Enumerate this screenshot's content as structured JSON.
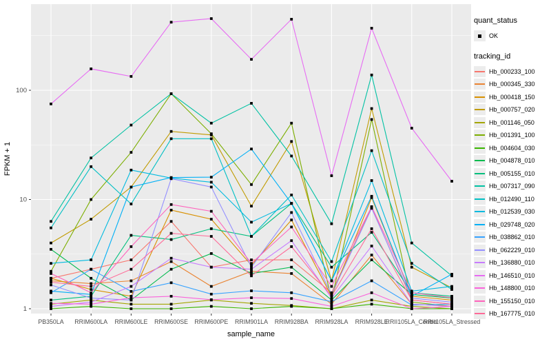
{
  "page": {
    "background": "#FFFFFF"
  },
  "panel": {
    "background": "#EBEBEB",
    "grid_color": "#FFFFFF",
    "tick_color": "#333333",
    "tick_label_color": "#4D4D4D"
  },
  "axes": {
    "x": {
      "label": "sample_name",
      "categories": [
        "PB350LA",
        "RRIM600LA",
        "RRIM600LE",
        "RRIM600SE",
        "RRIM600PE",
        "RRIM901LA",
        "RRIM928BA",
        "RRIM928LA",
        "RRIM928LE",
        "RRII105LA_Control",
        "RRII105LA_Stressed"
      ]
    },
    "y": {
      "label": "FPKM + 1",
      "scale": "log10",
      "tick_labels": [
        "1",
        "10",
        "100"
      ]
    }
  },
  "legend": {
    "quant_status": {
      "title": "quant_status",
      "items": [
        {
          "label": "OK",
          "marker": "black-point"
        }
      ]
    },
    "tracking_id": {
      "title": "tracking_id",
      "items": [
        {
          "label": "Hb_000233_100",
          "color": "#F8766D"
        },
        {
          "label": "Hb_000345_330",
          "color": "#EA8331"
        },
        {
          "label": "Hb_000418_150",
          "color": "#D89000"
        },
        {
          "label": "Hb_000757_020",
          "color": "#C09B00"
        },
        {
          "label": "Hb_001146_050",
          "color": "#A3A500"
        },
        {
          "label": "Hb_001391_100",
          "color": "#7CAE00"
        },
        {
          "label": "Hb_004604_030",
          "color": "#39B600"
        },
        {
          "label": "Hb_004878_010",
          "color": "#00BB4E"
        },
        {
          "label": "Hb_005155_010",
          "color": "#00BF7D"
        },
        {
          "label": "Hb_007317_090",
          "color": "#00C1A3"
        },
        {
          "label": "Hb_012490_110",
          "color": "#00BFC4"
        },
        {
          "label": "Hb_012539_030",
          "color": "#00BAE0"
        },
        {
          "label": "Hb_029748_020",
          "color": "#00B0F6"
        },
        {
          "label": "Hb_038862_010",
          "color": "#35A2FF"
        },
        {
          "label": "Hb_062229_010",
          "color": "#9590FF"
        },
        {
          "label": "Hb_136880_010",
          "color": "#C77CFF"
        },
        {
          "label": "Hb_146510_010",
          "color": "#E76BF3"
        },
        {
          "label": "Hb_148800_010",
          "color": "#FA62DB"
        },
        {
          "label": "Hb_155150_010",
          "color": "#FF62BC"
        },
        {
          "label": "Hb_167775_010",
          "color": "#FF6A98"
        }
      ]
    }
  },
  "chart_data": {
    "type": "line",
    "title": "",
    "xlabel": "sample_name",
    "ylabel": "FPKM + 1",
    "yscale": "log10",
    "ylim": [
      1,
      600
    ],
    "yticks": [
      1,
      10,
      100
    ],
    "minor_gridlines": [
      3.162,
      31.62,
      316.2
    ],
    "grid": true,
    "legend_position": "right",
    "point_color": "#000000",
    "categories": [
      "PB350LA",
      "RRIM600LA",
      "RRIM600LE",
      "RRIM600SE",
      "RRIM600PE",
      "RRIM901LA",
      "RRIM928BA",
      "RRIM928LA",
      "RRIM928LE",
      "RRII105LA_Control",
      "RRII105LA_Stressed"
    ],
    "series": [
      {
        "name": "Hb_000233_100",
        "color": "#F8766D",
        "values": [
          1.9,
          2.3,
          2.8,
          6.3,
          2.4,
          2.8,
          2.8,
          1.4,
          8.5,
          1.2,
          1.1
        ]
      },
      {
        "name": "Hb_000345_330",
        "color": "#EA8331",
        "values": [
          1.8,
          1.7,
          1.8,
          2.7,
          1.6,
          2.2,
          2.1,
          1.1,
          3.1,
          1.1,
          1.05
        ]
      },
      {
        "name": "Hb_000418_150",
        "color": "#D89000",
        "values": [
          1.9,
          1.5,
          1.3,
          8.0,
          6.6,
          2.5,
          6.5,
          1.3,
          10.4,
          1.3,
          1.2
        ]
      },
      {
        "name": "Hb_000757_020",
        "color": "#C09B00",
        "values": [
          4.0,
          6.6,
          13,
          42,
          39,
          8.7,
          34,
          1.8,
          68,
          2.4,
          1.55
        ]
      },
      {
        "name": "Hb_001146_050",
        "color": "#A3A500",
        "values": [
          1.1,
          1.2,
          1.1,
          1.1,
          1.2,
          1.12,
          1.07,
          1.0,
          1.2,
          1.05,
          1.0
        ]
      },
      {
        "name": "Hb_001391_100",
        "color": "#7CAE00",
        "values": [
          2.2,
          10,
          27,
          93,
          40,
          13.7,
          50,
          1.2,
          54,
          1.15,
          1.05
        ]
      },
      {
        "name": "Hb_004604_030",
        "color": "#39B600",
        "values": [
          1.0,
          1.05,
          1.0,
          1.0,
          1.05,
          1.0,
          1.05,
          1.0,
          1.1,
          1.0,
          1.0
        ]
      },
      {
        "name": "Hb_004878_010",
        "color": "#00BB4E",
        "values": [
          3.5,
          1.9,
          1.2,
          2.3,
          3.2,
          2.1,
          2.4,
          1.2,
          2.8,
          1.35,
          1.25
        ]
      },
      {
        "name": "Hb_005155_010",
        "color": "#00BF7D",
        "values": [
          1.2,
          1.3,
          4.7,
          4.3,
          5.4,
          4.6,
          9.2,
          2.4,
          5.0,
          1.4,
          1.3
        ]
      },
      {
        "name": "Hb_007317_090",
        "color": "#00C1A3",
        "values": [
          6.3,
          24,
          48,
          93,
          50,
          76,
          25,
          6.0,
          138,
          4.0,
          2.0
        ]
      },
      {
        "name": "Hb_012490_110",
        "color": "#00BFC4",
        "values": [
          5.5,
          20,
          9.1,
          36,
          36,
          4.6,
          11,
          2.7,
          28,
          2.6,
          1.5
        ]
      },
      {
        "name": "Hb_012539_030",
        "color": "#00BAE0",
        "values": [
          2.6,
          2.8,
          18.6,
          15.7,
          14.4,
          6.2,
          9.2,
          1.8,
          14.9,
          1.45,
          1.6
        ]
      },
      {
        "name": "Hb_029748_020",
        "color": "#00B0F6",
        "values": [
          1.45,
          1.35,
          13,
          15.9,
          16,
          29,
          9.2,
          1.8,
          10.7,
          1.3,
          2.07
        ]
      },
      {
        "name": "Hb_038862_010",
        "color": "#35A2FF",
        "values": [
          1.4,
          2.3,
          1.44,
          1.73,
          1.36,
          1.46,
          1.4,
          1.16,
          1.8,
          1.08,
          1.1
        ]
      },
      {
        "name": "Hb_062229_010",
        "color": "#9590FF",
        "values": [
          1.65,
          1.25,
          1.2,
          15.5,
          13,
          2.4,
          7.6,
          1.35,
          8.3,
          1.25,
          1.15
        ]
      },
      {
        "name": "Hb_136880_010",
        "color": "#C77CFF",
        "values": [
          1.05,
          1.15,
          1.6,
          2.9,
          2.4,
          2.3,
          4.2,
          1.25,
          3.75,
          1.1,
          1.05
        ]
      },
      {
        "name": "Hb_146510_010",
        "color": "#E76BF3",
        "values": [
          75,
          157,
          134,
          420,
          453,
          192,
          447,
          16.5,
          370,
          45,
          14.7
        ]
      },
      {
        "name": "Hb_148800_010",
        "color": "#FA62DB",
        "values": [
          1.12,
          1.1,
          1.26,
          1.3,
          1.21,
          1.26,
          1.24,
          1.05,
          1.4,
          1.0,
          1.05
        ]
      },
      {
        "name": "Hb_155150_010",
        "color": "#FF62BC",
        "values": [
          2.1,
          1.4,
          3.7,
          9.0,
          7.8,
          2.6,
          5.6,
          1.6,
          8.6,
          1.4,
          1.26
        ]
      },
      {
        "name": "Hb_167775_010",
        "color": "#FF6A98",
        "values": [
          1.75,
          1.6,
          2.3,
          4.9,
          4.6,
          2.0,
          3.7,
          1.3,
          5.4,
          1.2,
          1.1
        ]
      }
    ]
  }
}
